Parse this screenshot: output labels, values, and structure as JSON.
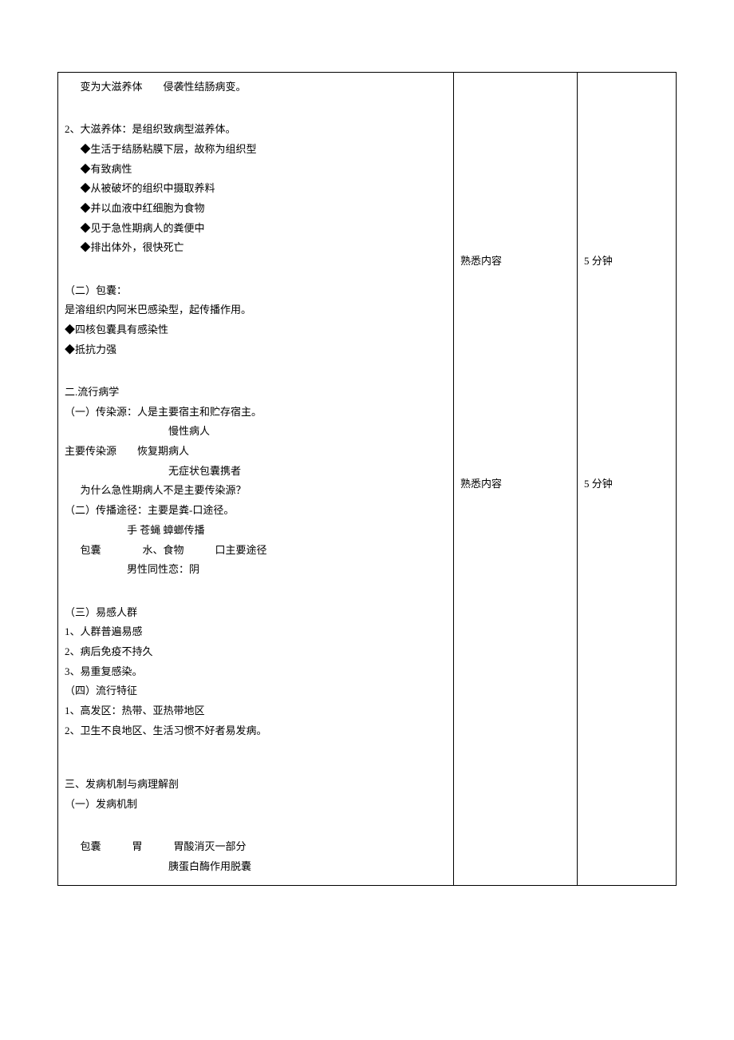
{
  "colors": {
    "text": "#000000",
    "border": "#000000",
    "background": "#ffffff"
  },
  "typography": {
    "body_fontsize_pt": 10,
    "line_height": 1.9,
    "font_family": "SimSun"
  },
  "content": {
    "line_top": "变为大滋养体　　侵袭性结肠病变。",
    "sec2_title": "2、大滋养体：是组织致病型滋养体。",
    "sec2_items": [
      "◆生活于结肠粘膜下层，故称为组织型",
      "◆有致病性",
      "◆从被破坏的组织中摄取养料",
      "◆并以血液中红细胞为食物",
      "◆见于急性期病人的粪便中",
      "◆排出体外，很快死亡"
    ],
    "cyst_title": "（二）包囊：",
    "cyst_desc": "是溶组织内阿米巴感染型，起传播作用。",
    "cyst_items": [
      "◆四核包囊具有感染性",
      "◆抵抗力强"
    ],
    "epi_title": "二.流行病学",
    "epi_src_title": "（一）传染源：人是主要宿主和贮存宿主。",
    "epi_src_line1": "慢性病人",
    "epi_src_line2": "主要传染源　　恢复期病人",
    "epi_src_line3": "无症状包囊携者",
    "epi_src_q": "为什么急性期病人不是主要传染源？",
    "epi_route_title": "（二）传播途径：主要是粪-口途径。",
    "epi_route_line1": "手 苍蝇 蟑螂传播",
    "epi_route_line2": "包囊　　　　水、食物　　　口主要途径",
    "epi_route_line3": "男性同性恋：阴",
    "epi_susc_title": "（三）易感人群",
    "epi_susc_items": [
      "1、人群普遍易感",
      "2、病后免疫不持久",
      "3、易重复感染。"
    ],
    "epi_feat_title": "（四）流行特征",
    "epi_feat_items": [
      "1、高发区：热带、亚热带地区",
      "2、卫生不良地区、生活习惯不好者易发病。"
    ],
    "path_title": "三、发病机制与病理解剖",
    "path_sub": "（一）发病机制",
    "path_line1": "包囊　　　胃　　　胃酸消灭一部分",
    "path_line2": "胰蛋白酶作用脱囊"
  },
  "notes": {
    "epi": "熟悉内容",
    "path": "熟悉内容"
  },
  "times": {
    "epi": "5 分钟",
    "path": "5 分钟"
  }
}
